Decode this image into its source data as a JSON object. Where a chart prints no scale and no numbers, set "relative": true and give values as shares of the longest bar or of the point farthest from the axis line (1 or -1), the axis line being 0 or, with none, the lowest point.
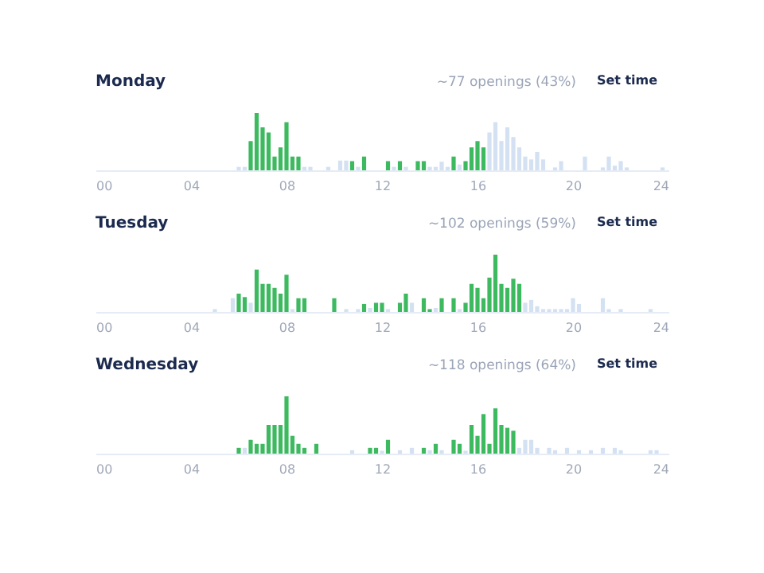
{
  "chart_data": [
    {
      "type": "bar",
      "title": "Monday",
      "relative": true,
      "annotations": [
        "~77 openings (43%)",
        "Set time"
      ],
      "xlim": [
        0,
        24
      ],
      "xticks": [
        {
          "value": 0,
          "label": "00"
        },
        {
          "value": 4,
          "label": "04"
        },
        {
          "value": 8,
          "label": "08"
        },
        12,
        16,
        20,
        24
      ],
      "tick_labels": "x",
      "grid": false,
      "series": [
        {
          "color": "#3dba5f",
          "x": [
            6.5,
            6.75,
            7,
            7.25,
            7.5,
            7.75,
            8,
            8.25,
            8.5,
            10.75,
            11.25,
            12.25,
            12.75,
            13.5,
            13.75,
            15,
            15.5,
            15.75,
            16,
            16.25
          ],
          "values": [
            0.51,
            1.0,
            0.75,
            0.66,
            0.24,
            0.4,
            0.84,
            0.24,
            0.24,
            0.16,
            0.24,
            0.16,
            0.16,
            0.16,
            0.16,
            0.24,
            0.16,
            0.4,
            0.51,
            0.4
          ]
        },
        {
          "color": "#d3e1f2",
          "x": [
            6,
            6.25,
            8.75,
            9,
            9.75,
            10.25,
            10.5,
            11,
            12.5,
            13,
            14,
            14.25,
            14.5,
            14.75,
            15.25,
            16.5,
            16.75,
            17,
            17.25,
            17.5,
            17.75,
            18,
            18.25,
            18.5,
            18.75,
            19.25,
            19.5,
            20.5,
            21.25,
            21.5,
            21.75,
            22,
            22.25,
            23.75
          ],
          "values": [
            0.06,
            0.06,
            0.06,
            0.06,
            0.06,
            0.17,
            0.17,
            0.06,
            0.06,
            0.06,
            0.06,
            0.06,
            0.15,
            0.06,
            0.1,
            0.66,
            0.84,
            0.51,
            0.75,
            0.58,
            0.4,
            0.24,
            0.19,
            0.32,
            0.19,
            0.05,
            0.16,
            0.24,
            0.05,
            0.24,
            0.08,
            0.16,
            0.05,
            0.05
          ]
        }
      ]
    },
    {
      "type": "bar",
      "title": "Tuesday",
      "relative": true,
      "annotations": [
        "~102 openings (59%)",
        "Set time"
      ],
      "xlim": [
        0,
        24
      ],
      "xticks": [
        {
          "value": 0,
          "label": "00"
        },
        {
          "value": 4,
          "label": "04"
        },
        {
          "value": 8,
          "label": "08"
        },
        12,
        16,
        20,
        24
      ],
      "tick_labels": "x",
      "grid": false,
      "series": [
        {
          "color": "#3dba5f",
          "x": [
            6,
            6.25,
            6.75,
            7,
            7.25,
            7.5,
            7.75,
            8,
            8.5,
            8.75,
            10,
            11.25,
            11.75,
            12,
            12.75,
            13,
            13.75,
            14,
            14.5,
            15,
            15.5,
            15.75,
            16,
            16.25,
            16.5,
            16.75,
            17,
            17.25,
            17.5,
            17.75
          ],
          "values": [
            0.32,
            0.26,
            0.74,
            0.49,
            0.49,
            0.42,
            0.32,
            0.65,
            0.24,
            0.24,
            0.24,
            0.14,
            0.16,
            0.16,
            0.16,
            0.32,
            0.24,
            0.05,
            0.24,
            0.24,
            0.16,
            0.49,
            0.42,
            0.24,
            0.6,
            1.0,
            0.49,
            0.42,
            0.58,
            0.49
          ]
        },
        {
          "color": "#d3e1f2",
          "x": [
            5,
            5.75,
            6.5,
            8.25,
            10.5,
            11,
            11.5,
            12.25,
            13.25,
            14.25,
            15.25,
            18,
            18.25,
            18.5,
            18.75,
            19,
            19.25,
            19.5,
            19.75,
            20,
            20.25,
            21.25,
            21.5,
            22,
            23.25
          ],
          "values": [
            0.05,
            0.24,
            0.16,
            0.05,
            0.05,
            0.05,
            0.07,
            0.05,
            0.16,
            0.07,
            0.05,
            0.16,
            0.21,
            0.1,
            0.05,
            0.05,
            0.05,
            0.05,
            0.05,
            0.24,
            0.14,
            0.24,
            0.05,
            0.05,
            0.05
          ]
        }
      ]
    },
    {
      "type": "bar",
      "title": "Wednesday",
      "relative": true,
      "annotations": [
        "~118 openings (64%)",
        "Set time"
      ],
      "xlim": [
        0,
        24
      ],
      "xticks": [
        {
          "value": 0,
          "label": "00"
        },
        {
          "value": 4,
          "label": "04"
        },
        {
          "value": 8,
          "label": "08"
        },
        12,
        16,
        20,
        24
      ],
      "tick_labels": "x",
      "grid": false,
      "series": [
        {
          "color": "#3dba5f",
          "x": [
            6,
            6.5,
            6.75,
            7,
            7.25,
            7.5,
            7.75,
            8,
            8.25,
            8.5,
            8.75,
            9.25,
            11.5,
            11.75,
            12.25,
            13.75,
            14.25,
            15,
            15.25,
            15.75,
            16,
            16.25,
            16.5,
            16.75,
            17,
            17.25,
            17.5
          ],
          "values": [
            0.1,
            0.24,
            0.17,
            0.17,
            0.5,
            0.5,
            0.5,
            1.0,
            0.31,
            0.17,
            0.1,
            0.17,
            0.1,
            0.1,
            0.24,
            0.1,
            0.17,
            0.24,
            0.17,
            0.5,
            0.31,
            0.69,
            0.17,
            0.79,
            0.5,
            0.45,
            0.4
          ]
        },
        {
          "color": "#d3e1f2",
          "x": [
            6.25,
            10.75,
            12,
            12.75,
            13.25,
            14,
            14.5,
            15.5,
            17.75,
            18,
            18.25,
            18.5,
            19,
            19.25,
            19.75,
            20.25,
            20.75,
            21.25,
            21.75,
            22,
            23.25,
            23.5
          ],
          "values": [
            0.1,
            0.06,
            0.05,
            0.06,
            0.1,
            0.06,
            0.06,
            0.05,
            0.1,
            0.24,
            0.24,
            0.1,
            0.1,
            0.06,
            0.1,
            0.06,
            0.06,
            0.1,
            0.1,
            0.06,
            0.06,
            0.06
          ]
        }
      ]
    }
  ]
}
